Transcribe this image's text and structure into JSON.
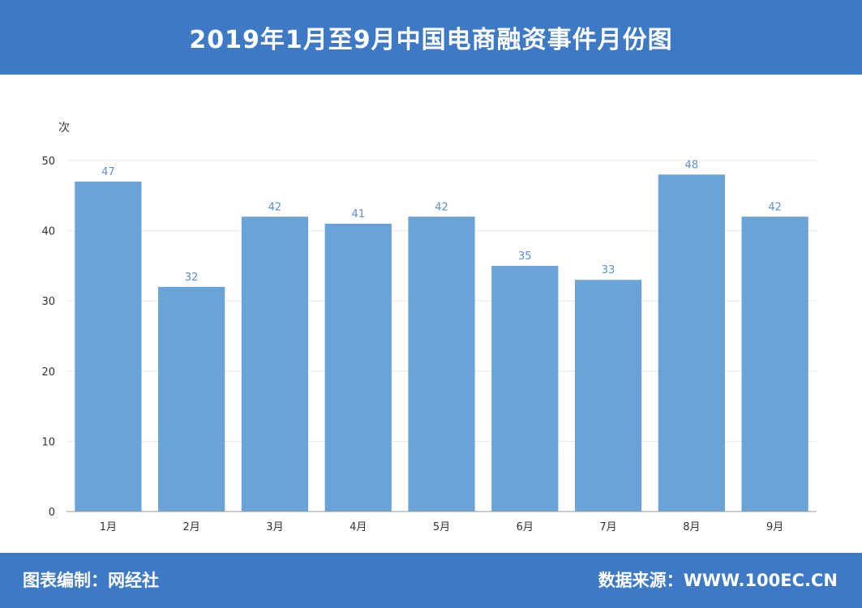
{
  "header": {
    "title": "2019年1月至9月中国电商融资事件月份图"
  },
  "footer": {
    "credit_label": "图表编制：",
    "credit_value": "网经社",
    "source_label": "数据来源：",
    "source_value": "WWW.100EC.CN"
  },
  "colors": {
    "bar": "#6aa3d8",
    "title_bg": "#3d79c4",
    "data_label": "#5b8fd0",
    "axis_text": "#333333",
    "grid": "#e8e8e8"
  },
  "chart_data": {
    "type": "bar",
    "title": "",
    "ylabel": "次",
    "xlabel": "",
    "categories": [
      "1月",
      "2月",
      "3月",
      "4月",
      "5月",
      "6月",
      "7月",
      "8月",
      "9月"
    ],
    "values": [
      47,
      32,
      42,
      41,
      42,
      35,
      33,
      48,
      42
    ],
    "ylim": [
      0,
      50
    ],
    "yticks": [
      0,
      10,
      20,
      30,
      40,
      50
    ],
    "grid": true,
    "legend": "none"
  }
}
